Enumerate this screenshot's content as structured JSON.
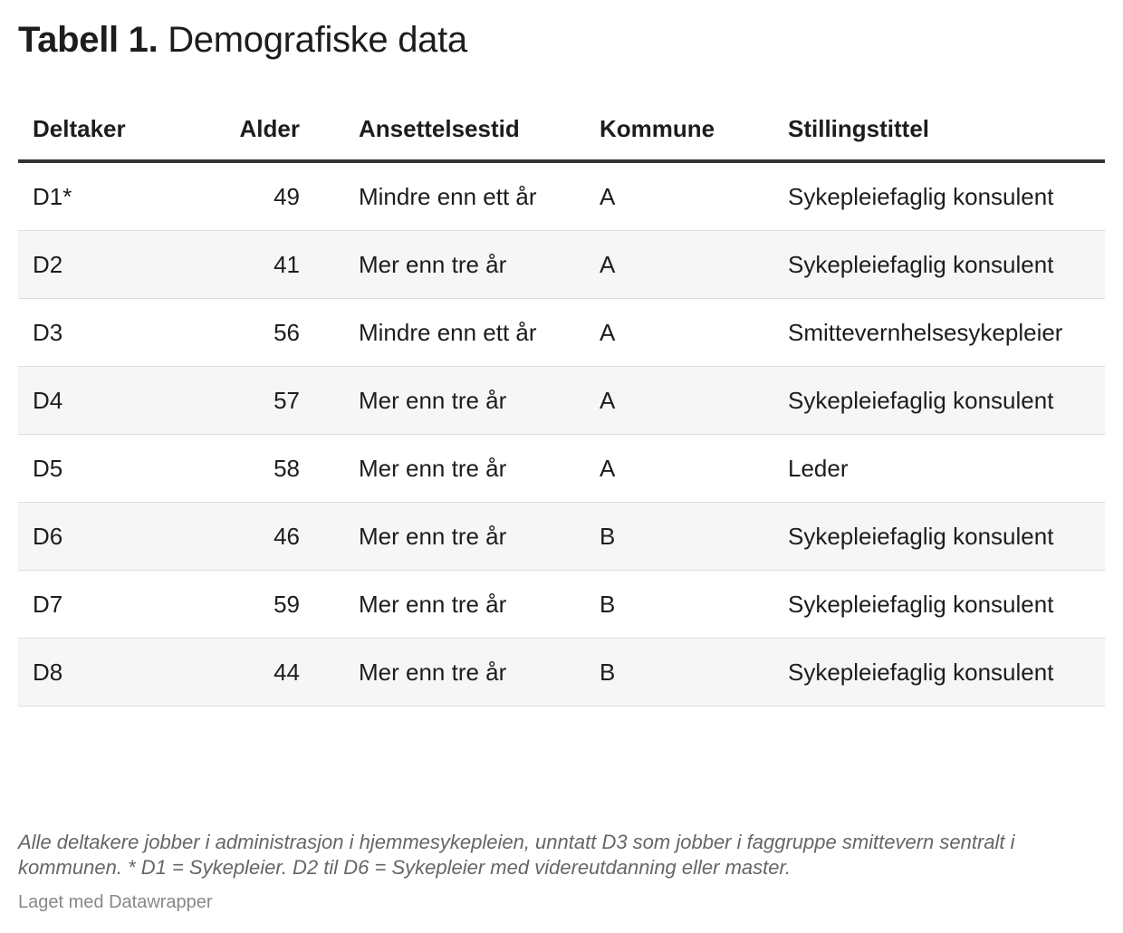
{
  "title": {
    "prefix": "Tabell 1.",
    "text": "Demografiske data"
  },
  "table": {
    "header": [
      "Deltaker",
      "Alder",
      "Ansettelsestid",
      "Kommune",
      "Stillingstittel"
    ],
    "rows": [
      [
        "D1*",
        49,
        "Mindre enn ett år",
        "A",
        "Sykepleiefaglig konsulent"
      ],
      [
        "D2",
        41,
        "Mer enn tre år",
        "A",
        "Sykepleiefaglig konsulent"
      ],
      [
        "D3",
        56,
        "Mindre enn ett år",
        "A",
        "Smittevernhelsesykepleier"
      ],
      [
        "D4",
        57,
        "Mer enn tre år",
        "A",
        "Sykepleiefaglig konsulent"
      ],
      [
        "D5",
        58,
        "Mer enn tre år",
        "A",
        "Leder"
      ],
      [
        "D6",
        46,
        "Mer enn tre år",
        "B",
        "Sykepleiefaglig konsulent"
      ],
      [
        "D7",
        59,
        "Mer enn tre år",
        "B",
        "Sykepleiefaglig konsulent"
      ],
      [
        "D8",
        44,
        "Mer enn tre år",
        "B",
        "Sykepleiefaglig konsulent"
      ]
    ]
  },
  "notes": "Alle deltakere jobber i administrasjon i hjemmesykepleien, unntatt D3 som jobber i faggruppe smittevern sentralt i kommunen. * D1 = Sykepleier. D2 til D6 = Sykepleier med videreutdanning eller master.",
  "footer": "Laget med Datawrapper"
}
